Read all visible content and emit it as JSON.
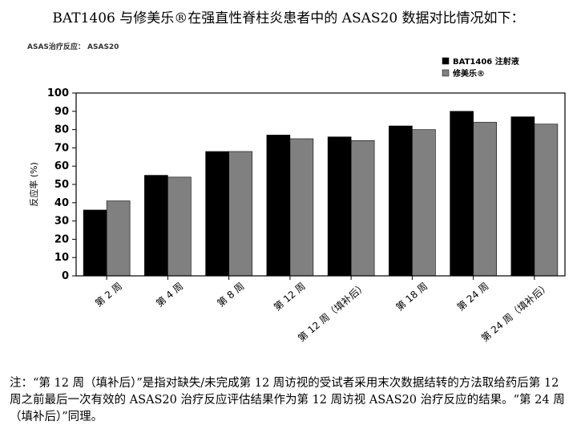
{
  "heading": "BAT1406 与修美乐®在强直性脊柱炎患者中的 ASAS20 数据对比情况如下：",
  "note": "注：“第 12 周（填补后）”是指对缺失/未完成第 12 周访视的受试者采用末次数据结转的方法取给药后第 12 周之前最后一次有效的 ASAS20 治疗反应评估结果作为第 12 周访视 ASAS20 治疗反应的结果。“第 24 周（填补后）”同理。",
  "chart_data": {
    "type": "bar",
    "title": "ASAS治疗反应： ASAS20",
    "xlabel": "",
    "ylabel": "反应率 (%)",
    "ylim": [
      0,
      100
    ],
    "yticks": [
      0,
      10,
      20,
      30,
      40,
      50,
      60,
      70,
      80,
      90,
      100
    ],
    "grid": false,
    "legend_position": "top-right",
    "categories": [
      "第 2 周",
      "第 4 周",
      "第 8 周",
      "第 12 周",
      "第 12 周（填补后）",
      "第 18 周",
      "第 24 周",
      "第 24 周（填补后）"
    ],
    "series": [
      {
        "name": "BAT1406 注射液",
        "color": "#000000",
        "values": [
          36,
          55,
          68,
          77,
          76,
          82,
          90,
          87
        ]
      },
      {
        "name": "修美乐®",
        "color": "#808080",
        "values": [
          41,
          54,
          68,
          75,
          74,
          80,
          84,
          83
        ]
      }
    ]
  }
}
